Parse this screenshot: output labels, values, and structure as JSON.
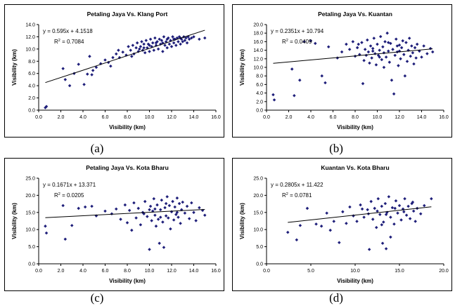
{
  "captions": [
    "(a)",
    "(b)",
    "(c)",
    "(d)"
  ],
  "chart_data": [
    {
      "type": "scatter",
      "title": "Petaling Jaya Vs. Klang Port",
      "xlabel": "Visibility (km)",
      "ylabel": "Visibility (km)",
      "xlim": [
        0,
        16
      ],
      "ylim": [
        0,
        14
      ],
      "xticks": [
        "0.0",
        "2.0",
        "4.0",
        "6.0",
        "8.0",
        "10.0",
        "12.0",
        "14.0",
        "16.0"
      ],
      "yticks": [
        "0.0",
        "2.0",
        "4.0",
        "6.0",
        "8.0",
        "10.0",
        "12.0",
        "14.0"
      ],
      "equation": "y = 0.595x + 4.1518",
      "r2_label": "R",
      "r2_value": " = 0.7084",
      "trend": {
        "slope": 0.595,
        "intercept": 4.1518,
        "x0": 0.6,
        "x1": 15.0
      },
      "point_color": "#1f1f7a",
      "points": [
        [
          0.6,
          0.4
        ],
        [
          0.7,
          0.6
        ],
        [
          2.2,
          6.8
        ],
        [
          2.4,
          5.0
        ],
        [
          2.8,
          4.0
        ],
        [
          3.2,
          6.0
        ],
        [
          3.6,
          7.5
        ],
        [
          4.1,
          4.2
        ],
        [
          4.4,
          5.9
        ],
        [
          4.6,
          8.8
        ],
        [
          4.8,
          5.8
        ],
        [
          4.9,
          6.5
        ],
        [
          5.2,
          7.0
        ],
        [
          5.6,
          7.6
        ],
        [
          6.0,
          8.2
        ],
        [
          6.3,
          7.8
        ],
        [
          6.7,
          8.6
        ],
        [
          7.0,
          9.2
        ],
        [
          7.3,
          8.6
        ],
        [
          7.6,
          9.5
        ],
        [
          7.9,
          9.0
        ],
        [
          8.1,
          10.4
        ],
        [
          8.3,
          9.8
        ],
        [
          8.5,
          10.6
        ],
        [
          8.6,
          9.2
        ],
        [
          8.8,
          10.2
        ],
        [
          8.9,
          11.0
        ],
        [
          9.0,
          9.6
        ],
        [
          9.2,
          10.4
        ],
        [
          9.3,
          11.2
        ],
        [
          9.4,
          9.8
        ],
        [
          9.5,
          10.8
        ],
        [
          9.6,
          9.4
        ],
        [
          9.7,
          11.4
        ],
        [
          9.8,
          10.2
        ],
        [
          9.9,
          10.8
        ],
        [
          10.0,
          9.6
        ],
        [
          10.1,
          11.6
        ],
        [
          10.2,
          10.4
        ],
        [
          10.3,
          11.0
        ],
        [
          10.4,
          9.8
        ],
        [
          10.5,
          11.8
        ],
        [
          10.6,
          10.6
        ],
        [
          10.7,
          11.2
        ],
        [
          10.8,
          10.0
        ],
        [
          10.9,
          11.6
        ],
        [
          11.0,
          10.8
        ],
        [
          11.1,
          11.4
        ],
        [
          11.2,
          9.6
        ],
        [
          11.3,
          12.0
        ],
        [
          11.4,
          10.6
        ],
        [
          11.5,
          11.2
        ],
        [
          11.6,
          10.2
        ],
        [
          11.7,
          11.8
        ],
        [
          11.8,
          10.8
        ],
        [
          11.9,
          11.4
        ],
        [
          12.0,
          10.4
        ],
        [
          12.1,
          12.0
        ],
        [
          12.2,
          11.0
        ],
        [
          12.3,
          11.6
        ],
        [
          12.4,
          10.6
        ],
        [
          12.5,
          11.8
        ],
        [
          12.6,
          11.2
        ],
        [
          12.7,
          12.0
        ],
        [
          12.8,
          10.8
        ],
        [
          12.9,
          11.6
        ],
        [
          13.0,
          11.2
        ],
        [
          13.1,
          12.0
        ],
        [
          13.2,
          11.4
        ],
        [
          13.3,
          11.8
        ],
        [
          13.4,
          11.0
        ],
        [
          13.5,
          12.0
        ],
        [
          13.6,
          11.6
        ],
        [
          13.8,
          11.8
        ],
        [
          14.0,
          12.0
        ],
        [
          14.5,
          11.6
        ],
        [
          15.0,
          11.8
        ],
        [
          9.1,
          10.0
        ],
        [
          9.5,
          10.2
        ],
        [
          10.0,
          10.6
        ],
        [
          10.6,
          11.0
        ],
        [
          11.2,
          11.0
        ],
        [
          11.6,
          11.6
        ],
        [
          12.2,
          11.6
        ],
        [
          12.8,
          11.8
        ],
        [
          8.4,
          8.8
        ],
        [
          7.2,
          9.8
        ],
        [
          6.5,
          7.2
        ]
      ]
    },
    {
      "type": "scatter",
      "title": "Petaling Jaya Vs. Kuantan",
      "xlabel": "Visibility (km)",
      "ylabel": "Visibility (km)",
      "xlim": [
        0,
        16
      ],
      "ylim": [
        0,
        20
      ],
      "xticks": [
        "0.0",
        "2.0",
        "4.0",
        "6.0",
        "8.0",
        "10.0",
        "12.0",
        "14.0",
        "16.0"
      ],
      "yticks": [
        "0.0",
        "2.0",
        "4.0",
        "6.0",
        "8.0",
        "10.0",
        "12.0",
        "14.0",
        "16.0",
        "18.0",
        "20.0"
      ],
      "equation": "y = 0.2351x + 10.794",
      "r2_label": "R",
      "r2_value": " = 0.0409",
      "trend": {
        "slope": 0.2351,
        "intercept": 10.794,
        "x0": 0.6,
        "x1": 15.0
      },
      "point_color": "#1f1f7a",
      "points": [
        [
          0.6,
          3.6
        ],
        [
          0.7,
          2.4
        ],
        [
          2.3,
          9.6
        ],
        [
          2.5,
          3.4
        ],
        [
          3.0,
          7.0
        ],
        [
          3.4,
          16.0
        ],
        [
          4.0,
          16.2
        ],
        [
          4.4,
          15.6
        ],
        [
          5.0,
          8.0
        ],
        [
          5.3,
          6.4
        ],
        [
          5.6,
          14.8
        ],
        [
          6.4,
          12.2
        ],
        [
          6.8,
          13.6
        ],
        [
          7.2,
          15.4
        ],
        [
          7.5,
          14.2
        ],
        [
          7.8,
          16.0
        ],
        [
          8.0,
          12.6
        ],
        [
          8.2,
          14.6
        ],
        [
          8.4,
          13.0
        ],
        [
          8.6,
          15.8
        ],
        [
          8.7,
          6.2
        ],
        [
          8.8,
          11.6
        ],
        [
          8.9,
          14.2
        ],
        [
          9.0,
          12.8
        ],
        [
          9.1,
          16.4
        ],
        [
          9.2,
          13.6
        ],
        [
          9.3,
          11.0
        ],
        [
          9.4,
          15.0
        ],
        [
          9.5,
          12.2
        ],
        [
          9.6,
          14.4
        ],
        [
          9.7,
          16.8
        ],
        [
          9.8,
          13.2
        ],
        [
          9.9,
          10.6
        ],
        [
          10.0,
          15.4
        ],
        [
          10.1,
          12.8
        ],
        [
          10.2,
          14.0
        ],
        [
          10.3,
          17.2
        ],
        [
          10.4,
          11.8
        ],
        [
          10.5,
          14.8
        ],
        [
          10.6,
          13.4
        ],
        [
          10.7,
          16.0
        ],
        [
          10.8,
          12.4
        ],
        [
          10.9,
          18.0
        ],
        [
          11.0,
          13.8
        ],
        [
          11.1,
          11.2
        ],
        [
          11.2,
          15.6
        ],
        [
          11.3,
          7.0
        ],
        [
          11.4,
          14.2
        ],
        [
          11.5,
          3.8
        ],
        [
          11.6,
          12.8
        ],
        [
          11.7,
          16.6
        ],
        [
          11.8,
          13.6
        ],
        [
          11.9,
          10.4
        ],
        [
          12.0,
          15.2
        ],
        [
          12.1,
          12.0
        ],
        [
          12.2,
          14.6
        ],
        [
          12.3,
          16.2
        ],
        [
          12.4,
          13.0
        ],
        [
          12.5,
          8.0
        ],
        [
          12.6,
          15.8
        ],
        [
          12.7,
          11.4
        ],
        [
          12.8,
          14.0
        ],
        [
          12.9,
          16.8
        ],
        [
          13.0,
          12.6
        ],
        [
          13.1,
          15.0
        ],
        [
          13.2,
          13.4
        ],
        [
          13.3,
          10.8
        ],
        [
          13.4,
          14.6
        ],
        [
          13.5,
          12.2
        ],
        [
          13.6,
          15.4
        ],
        [
          13.8,
          13.8
        ],
        [
          14.0,
          12.4
        ],
        [
          14.2,
          15.0
        ],
        [
          14.5,
          13.2
        ],
        [
          14.8,
          14.4
        ],
        [
          15.0,
          13.6
        ],
        [
          10.2,
          12.4
        ],
        [
          11.0,
          15.8
        ],
        [
          9.6,
          13.8
        ],
        [
          12.0,
          13.8
        ],
        [
          8.3,
          15.4
        ],
        [
          10.6,
          10.0
        ],
        [
          11.8,
          15.0
        ]
      ]
    },
    {
      "type": "scatter",
      "title": "Petaling Jaya Vs. Kota Bharu",
      "xlabel": "Visibility (km)",
      "ylabel": "Visibility (km)",
      "xlim": [
        0,
        16
      ],
      "ylim": [
        0,
        25
      ],
      "xticks": [
        "0.0",
        "2.0",
        "4.0",
        "6.0",
        "8.0",
        "10.0",
        "12.0",
        "14.0",
        "16.0"
      ],
      "yticks": [
        "0.0",
        "5.0",
        "10.0",
        "15.0",
        "20.0",
        "25.0"
      ],
      "equation": "y = 0.1671x + 13.371",
      "r2_label": "R",
      "r2_value": " = 0.0205",
      "trend": {
        "slope": 0.1671,
        "intercept": 13.371,
        "x0": 0.6,
        "x1": 15.0
      },
      "point_color": "#1f1f7a",
      "points": [
        [
          0.6,
          11.0
        ],
        [
          0.7,
          9.0
        ],
        [
          2.4,
          7.2
        ],
        [
          2.2,
          17.0
        ],
        [
          3.0,
          11.2
        ],
        [
          3.6,
          16.2
        ],
        [
          4.2,
          16.6
        ],
        [
          4.8,
          16.8
        ],
        [
          5.2,
          14.0
        ],
        [
          6.0,
          15.4
        ],
        [
          6.6,
          14.6
        ],
        [
          7.0,
          16.0
        ],
        [
          7.4,
          13.0
        ],
        [
          7.8,
          17.2
        ],
        [
          8.0,
          12.0
        ],
        [
          8.2,
          15.6
        ],
        [
          8.4,
          9.8
        ],
        [
          8.6,
          17.8
        ],
        [
          8.8,
          13.4
        ],
        [
          9.0,
          16.2
        ],
        [
          9.2,
          11.4
        ],
        [
          9.4,
          15.0
        ],
        [
          9.6,
          18.2
        ],
        [
          9.8,
          13.8
        ],
        [
          10.0,
          4.2
        ],
        [
          10.1,
          16.8
        ],
        [
          10.2,
          12.6
        ],
        [
          10.3,
          15.4
        ],
        [
          10.4,
          19.0
        ],
        [
          10.5,
          14.2
        ],
        [
          10.6,
          11.0
        ],
        [
          10.7,
          17.2
        ],
        [
          10.8,
          13.0
        ],
        [
          10.9,
          6.0
        ],
        [
          11.0,
          15.8
        ],
        [
          11.1,
          18.6
        ],
        [
          11.2,
          12.2
        ],
        [
          11.3,
          4.8
        ],
        [
          11.4,
          16.4
        ],
        [
          11.5,
          14.0
        ],
        [
          11.6,
          19.6
        ],
        [
          11.7,
          13.4
        ],
        [
          11.8,
          17.0
        ],
        [
          11.9,
          10.2
        ],
        [
          12.0,
          15.2
        ],
        [
          12.1,
          18.2
        ],
        [
          12.2,
          12.8
        ],
        [
          12.3,
          16.6
        ],
        [
          12.4,
          14.4
        ],
        [
          12.5,
          19.2
        ],
        [
          12.6,
          13.6
        ],
        [
          12.7,
          17.6
        ],
        [
          12.8,
          11.8
        ],
        [
          12.9,
          15.8
        ],
        [
          13.0,
          18.0
        ],
        [
          13.2,
          14.8
        ],
        [
          13.4,
          16.8
        ],
        [
          13.6,
          13.2
        ],
        [
          13.8,
          17.8
        ],
        [
          14.0,
          15.0
        ],
        [
          14.2,
          12.6
        ],
        [
          14.5,
          16.4
        ],
        [
          14.8,
          15.6
        ],
        [
          15.0,
          14.2
        ],
        [
          9.5,
          14.6
        ],
        [
          10.5,
          16.0
        ],
        [
          11.5,
          17.6
        ],
        [
          12.5,
          15.0
        ],
        [
          11.0,
          13.6
        ],
        [
          10.0,
          15.8
        ]
      ]
    },
    {
      "type": "scatter",
      "title": "Kuantan Vs. Kota Bharu",
      "xlabel": "Visibility (km)",
      "ylabel": "Visibility (km)",
      "xlim": [
        0,
        20
      ],
      "ylim": [
        0,
        25
      ],
      "xticks": [
        "0.0",
        "5.0",
        "10.0",
        "15.0",
        "20.0"
      ],
      "yticks": [
        "0.0",
        "5.0",
        "10.0",
        "15.0",
        "20.0",
        "25.0"
      ],
      "equation": "y = 0.2805x + 11.422",
      "r2_label": "R",
      "r2_value": " = 0.0781",
      "trend": {
        "slope": 0.2805,
        "intercept": 11.422,
        "x0": 2.4,
        "x1": 18.6
      },
      "point_color": "#1f1f7a",
      "points": [
        [
          2.4,
          9.2
        ],
        [
          3.4,
          7.0
        ],
        [
          3.8,
          11.2
        ],
        [
          4.6,
          16.2
        ],
        [
          5.6,
          11.6
        ],
        [
          6.2,
          11.0
        ],
        [
          6.8,
          14.8
        ],
        [
          7.2,
          9.8
        ],
        [
          7.6,
          12.4
        ],
        [
          8.2,
          6.2
        ],
        [
          8.6,
          15.2
        ],
        [
          9.0,
          11.8
        ],
        [
          9.4,
          16.6
        ],
        [
          9.8,
          14.0
        ],
        [
          10.2,
          12.4
        ],
        [
          10.6,
          17.2
        ],
        [
          11.0,
          13.6
        ],
        [
          11.4,
          15.8
        ],
        [
          11.6,
          4.2
        ],
        [
          11.8,
          18.2
        ],
        [
          12.0,
          13.0
        ],
        [
          12.2,
          16.2
        ],
        [
          12.4,
          10.6
        ],
        [
          12.6,
          19.0
        ],
        [
          12.8,
          14.4
        ],
        [
          13.0,
          16.8
        ],
        [
          13.1,
          6.0
        ],
        [
          13.2,
          12.2
        ],
        [
          13.4,
          17.6
        ],
        [
          13.5,
          4.4
        ],
        [
          13.6,
          15.0
        ],
        [
          13.8,
          19.6
        ],
        [
          14.0,
          13.6
        ],
        [
          14.2,
          16.4
        ],
        [
          14.4,
          11.6
        ],
        [
          14.6,
          18.4
        ],
        [
          14.8,
          14.8
        ],
        [
          15.0,
          17.0
        ],
        [
          15.2,
          12.8
        ],
        [
          15.4,
          16.0
        ],
        [
          15.6,
          19.0
        ],
        [
          15.8,
          14.2
        ],
        [
          16.0,
          16.8
        ],
        [
          16.2,
          13.2
        ],
        [
          16.4,
          17.6
        ],
        [
          16.6,
          15.4
        ],
        [
          16.8,
          12.4
        ],
        [
          17.0,
          16.2
        ],
        [
          17.4,
          14.6
        ],
        [
          17.8,
          17.0
        ],
        [
          18.6,
          19.0
        ],
        [
          12.5,
          15.4
        ],
        [
          13.5,
          14.4
        ],
        [
          14.5,
          16.2
        ],
        [
          15.5,
          15.2
        ],
        [
          11.5,
          14.6
        ],
        [
          16.5,
          18.0
        ],
        [
          10.8,
          16.0
        ],
        [
          13.0,
          11.4
        ],
        [
          14.0,
          7.8
        ]
      ]
    }
  ]
}
